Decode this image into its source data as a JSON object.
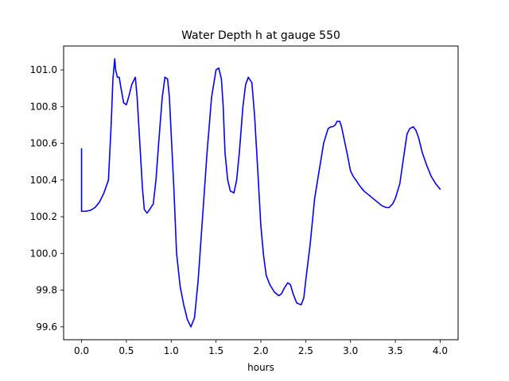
{
  "chart_data": {
    "type": "line",
    "title": "Water Depth h at gauge 550",
    "xlabel": "hours",
    "ylabel": "",
    "xlim": [
      -0.2,
      4.2
    ],
    "ylim": [
      99.53,
      101.13
    ],
    "xticks": [
      0.0,
      0.5,
      1.0,
      1.5,
      2.0,
      2.5,
      3.0,
      3.5,
      4.0
    ],
    "xtick_labels": [
      "0.0",
      "0.5",
      "1.0",
      "1.5",
      "2.0",
      "2.5",
      "3.0",
      "3.5",
      "4.0"
    ],
    "yticks": [
      99.6,
      99.8,
      100.0,
      100.2,
      100.4,
      100.6,
      100.8,
      101.0
    ],
    "ytick_labels": [
      "99.6",
      "99.8",
      "100.0",
      "100.2",
      "100.4",
      "100.6",
      "100.8",
      "101.0"
    ],
    "grid": false,
    "series": [
      {
        "color": "#0000ff",
        "x": [
          0.0,
          0.0,
          0.01,
          0.05,
          0.1,
          0.15,
          0.2,
          0.25,
          0.3,
          0.33,
          0.35,
          0.37,
          0.38,
          0.4,
          0.42,
          0.44,
          0.47,
          0.5,
          0.53,
          0.56,
          0.6,
          0.62,
          0.65,
          0.68,
          0.7,
          0.73,
          0.76,
          0.8,
          0.83,
          0.86,
          0.9,
          0.93,
          0.96,
          0.98,
          1.0,
          1.03,
          1.06,
          1.1,
          1.14,
          1.18,
          1.22,
          1.26,
          1.3,
          1.35,
          1.4,
          1.45,
          1.5,
          1.53,
          1.56,
          1.58,
          1.6,
          1.63,
          1.66,
          1.7,
          1.73,
          1.76,
          1.8,
          1.83,
          1.86,
          1.9,
          1.93,
          1.96,
          2.0,
          2.03,
          2.06,
          2.1,
          2.15,
          2.2,
          2.23,
          2.26,
          2.3,
          2.33,
          2.36,
          2.4,
          2.45,
          2.48,
          2.5,
          2.55,
          2.6,
          2.65,
          2.7,
          2.75,
          2.78,
          2.8,
          2.83,
          2.85,
          2.88,
          2.9,
          2.93,
          2.96,
          3.0,
          3.03,
          3.06,
          3.1,
          3.15,
          3.2,
          3.25,
          3.3,
          3.35,
          3.4,
          3.43,
          3.47,
          3.5,
          3.55,
          3.6,
          3.63,
          3.66,
          3.7,
          3.73,
          3.76,
          3.8,
          3.85,
          3.9,
          3.95,
          4.0
        ],
        "y": [
          100.57,
          100.23,
          100.23,
          100.23,
          100.235,
          100.25,
          100.28,
          100.33,
          100.4,
          100.7,
          100.95,
          101.06,
          101.0,
          100.96,
          100.96,
          100.9,
          100.82,
          100.81,
          100.86,
          100.92,
          100.96,
          100.85,
          100.6,
          100.35,
          100.24,
          100.22,
          100.24,
          100.27,
          100.4,
          100.6,
          100.85,
          100.96,
          100.95,
          100.85,
          100.65,
          100.35,
          100.0,
          99.82,
          99.72,
          99.64,
          99.6,
          99.65,
          99.85,
          100.2,
          100.55,
          100.85,
          101.0,
          101.01,
          100.95,
          100.8,
          100.55,
          100.4,
          100.34,
          100.33,
          100.4,
          100.55,
          100.8,
          100.92,
          100.96,
          100.93,
          100.75,
          100.5,
          100.15,
          99.99,
          99.88,
          99.83,
          99.79,
          99.77,
          99.78,
          99.81,
          99.84,
          99.83,
          99.78,
          99.73,
          99.72,
          99.76,
          99.85,
          100.05,
          100.3,
          100.45,
          100.6,
          100.68,
          100.69,
          100.69,
          100.7,
          100.72,
          100.72,
          100.69,
          100.62,
          100.55,
          100.45,
          100.42,
          100.4,
          100.37,
          100.34,
          100.32,
          100.3,
          100.28,
          100.26,
          100.25,
          100.25,
          100.27,
          100.3,
          100.38,
          100.55,
          100.65,
          100.68,
          100.69,
          100.67,
          100.63,
          100.55,
          100.48,
          100.42,
          100.38,
          100.35
        ]
      }
    ]
  }
}
